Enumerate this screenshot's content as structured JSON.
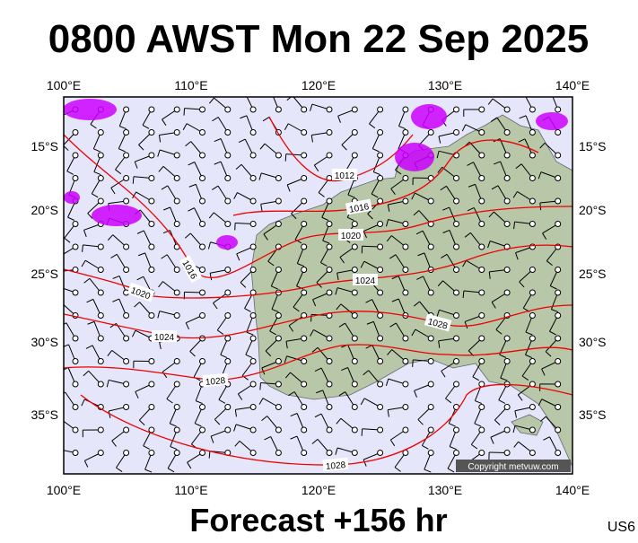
{
  "header": {
    "title": "0800 AWST Mon 22 Sep 2025"
  },
  "map": {
    "lon_labels": [
      "100°E",
      "110°E",
      "120°E",
      "130°E",
      "140°E"
    ],
    "lat_labels": [
      "15°S",
      "20°S",
      "25°S",
      "30°S",
      "35°S"
    ],
    "isobar_labels": [
      "1012",
      "1016",
      "1020",
      "1016",
      "1020",
      "1024",
      "1024",
      "1028",
      "1028",
      "1028"
    ],
    "copyright": "Copyright metvuw.com"
  },
  "footer": {
    "forecast": "Forecast +156 hr",
    "code": "US6"
  }
}
